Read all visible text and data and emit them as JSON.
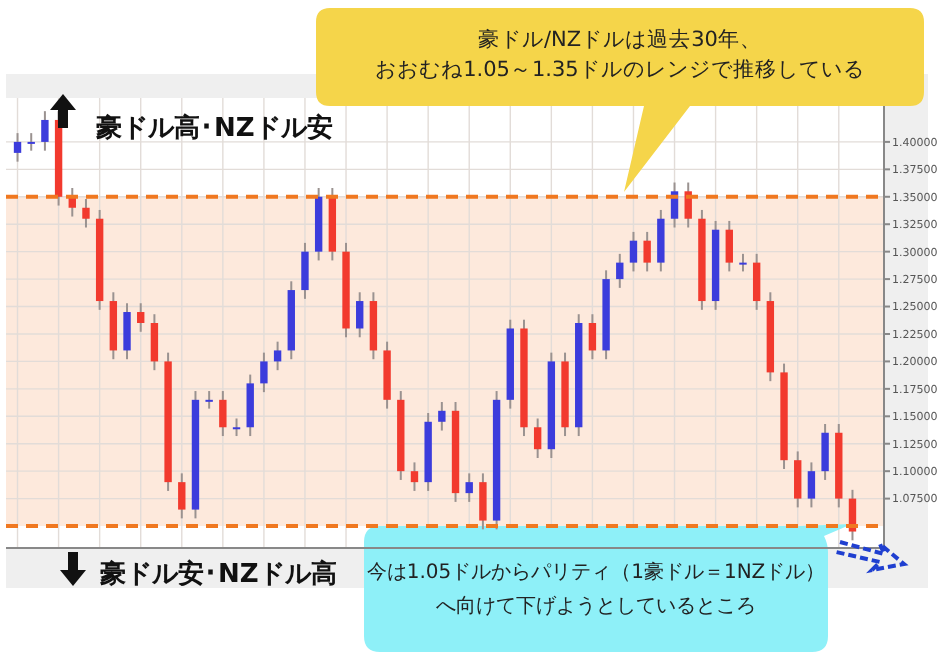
{
  "chart_data": {
    "type": "candlestick",
    "categories": [
      null,
      null,
      null,
      null,
      null,
      null,
      null,
      null,
      null,
      null,
      null,
      null,
      null,
      null,
      null,
      null,
      null,
      null,
      null,
      null,
      null,
      null,
      null,
      null,
      null,
      null,
      null,
      null,
      null,
      null,
      null,
      null,
      null,
      null,
      null,
      null,
      null,
      null,
      null,
      null,
      null,
      null,
      null,
      null,
      null,
      null,
      null,
      null,
      null,
      null,
      null,
      null,
      null,
      null,
      null,
      null,
      null,
      null,
      null,
      null,
      null,
      null
    ],
    "ohlc": [
      [
        1.39,
        1.408,
        1.382,
        1.4
      ],
      [
        1.4,
        1.408,
        1.392,
        1.4
      ],
      [
        1.4,
        1.428,
        1.392,
        1.42
      ],
      [
        1.42,
        1.428,
        1.342,
        1.35
      ],
      [
        1.35,
        1.358,
        1.332,
        1.34
      ],
      [
        1.34,
        1.348,
        1.322,
        1.33
      ],
      [
        1.33,
        1.338,
        1.247,
        1.255
      ],
      [
        1.255,
        1.263,
        1.202,
        1.21
      ],
      [
        1.21,
        1.253,
        1.202,
        1.245
      ],
      [
        1.245,
        1.253,
        1.227,
        1.235
      ],
      [
        1.235,
        1.243,
        1.192,
        1.2
      ],
      [
        1.2,
        1.208,
        1.082,
        1.09
      ],
      [
        1.09,
        1.098,
        1.057,
        1.065
      ],
      [
        1.065,
        1.173,
        1.057,
        1.165
      ],
      [
        1.165,
        1.173,
        1.157,
        1.165
      ],
      [
        1.165,
        1.173,
        1.132,
        1.14
      ],
      [
        1.14,
        1.148,
        1.132,
        1.14
      ],
      [
        1.14,
        1.188,
        1.132,
        1.18
      ],
      [
        1.18,
        1.208,
        1.172,
        1.2
      ],
      [
        1.2,
        1.218,
        1.192,
        1.21
      ],
      [
        1.21,
        1.273,
        1.202,
        1.265
      ],
      [
        1.265,
        1.308,
        1.257,
        1.3
      ],
      [
        1.3,
        1.358,
        1.292,
        1.35
      ],
      [
        1.35,
        1.358,
        1.292,
        1.3
      ],
      [
        1.3,
        1.308,
        1.222,
        1.23
      ],
      [
        1.23,
        1.263,
        1.222,
        1.255
      ],
      [
        1.255,
        1.263,
        1.202,
        1.21
      ],
      [
        1.21,
        1.218,
        1.157,
        1.165
      ],
      [
        1.165,
        1.173,
        1.092,
        1.1
      ],
      [
        1.1,
        1.108,
        1.082,
        1.09
      ],
      [
        1.09,
        1.153,
        1.082,
        1.145
      ],
      [
        1.145,
        1.163,
        1.137,
        1.155
      ],
      [
        1.155,
        1.163,
        1.072,
        1.08
      ],
      [
        1.08,
        1.098,
        1.072,
        1.09
      ],
      [
        1.09,
        1.098,
        1.047,
        1.055
      ],
      [
        1.055,
        1.173,
        1.047,
        1.165
      ],
      [
        1.165,
        1.238,
        1.157,
        1.23
      ],
      [
        1.23,
        1.238,
        1.132,
        1.14
      ],
      [
        1.14,
        1.148,
        1.112,
        1.12
      ],
      [
        1.12,
        1.208,
        1.112,
        1.2
      ],
      [
        1.2,
        1.208,
        1.132,
        1.14
      ],
      [
        1.14,
        1.243,
        1.132,
        1.235
      ],
      [
        1.235,
        1.243,
        1.202,
        1.21
      ],
      [
        1.21,
        1.283,
        1.202,
        1.275
      ],
      [
        1.275,
        1.298,
        1.267,
        1.29
      ],
      [
        1.29,
        1.318,
        1.282,
        1.31
      ],
      [
        1.31,
        1.318,
        1.282,
        1.29
      ],
      [
        1.29,
        1.338,
        1.282,
        1.33
      ],
      [
        1.33,
        1.363,
        1.322,
        1.355
      ],
      [
        1.355,
        1.363,
        1.322,
        1.33
      ],
      [
        1.33,
        1.338,
        1.247,
        1.255
      ],
      [
        1.255,
        1.328,
        1.247,
        1.32
      ],
      [
        1.32,
        1.328,
        1.282,
        1.29
      ],
      [
        1.29,
        1.298,
        1.282,
        1.29
      ],
      [
        1.29,
        1.298,
        1.247,
        1.255
      ],
      [
        1.255,
        1.263,
        1.182,
        1.19
      ],
      [
        1.19,
        1.198,
        1.102,
        1.11
      ],
      [
        1.11,
        1.118,
        1.067,
        1.075
      ],
      [
        1.075,
        1.108,
        1.067,
        1.1
      ],
      [
        1.1,
        1.143,
        1.092,
        1.135
      ],
      [
        1.135,
        1.143,
        1.067,
        1.075
      ],
      [
        1.075,
        1.083,
        1.037,
        1.045
      ]
    ],
    "ylim": [
      1.03,
      1.44
    ],
    "yticks": [
      {
        "value": 1.075,
        "label": "1.07500"
      },
      {
        "value": 1.1,
        "label": "1.10000"
      },
      {
        "value": 1.125,
        "label": "1.12500"
      },
      {
        "value": 1.15,
        "label": "1.15000"
      },
      {
        "value": 1.175,
        "label": "1.17500"
      },
      {
        "value": 1.2,
        "label": "1.20000"
      },
      {
        "value": 1.225,
        "label": "1.22500"
      },
      {
        "value": 1.25,
        "label": "1.25000"
      },
      {
        "value": 1.275,
        "label": "1.27500"
      },
      {
        "value": 1.3,
        "label": "1.30000"
      },
      {
        "value": 1.325,
        "label": "1.32500"
      },
      {
        "value": 1.35,
        "label": "1.35000"
      },
      {
        "value": 1.375,
        "label": "1.37500"
      },
      {
        "value": 1.4,
        "label": "1.40000"
      }
    ],
    "tick_labels": "y",
    "grid": true,
    "bands": [
      {
        "axis": "y",
        "from": 1.05,
        "to": 1.35,
        "color": "#fde9dc"
      }
    ],
    "ref_lines": [
      {
        "axis": "y",
        "value": 1.35,
        "color": "#f07820",
        "line_style": "dashed"
      },
      {
        "axis": "y",
        "value": 1.05,
        "color": "#f07820",
        "line_style": "dashed"
      }
    ],
    "annotations": [
      "豪ドル/NZドルは過去30年、おおむね1.05～1.35ドルのレンジで推移している",
      "今は1.05ドルからパリティ（1豪ドル＝1NZドル）へ向けて下げようとしているところ",
      "豪ドル高･NZドル安",
      "豪ドル安･NZドル高"
    ]
  }
}
